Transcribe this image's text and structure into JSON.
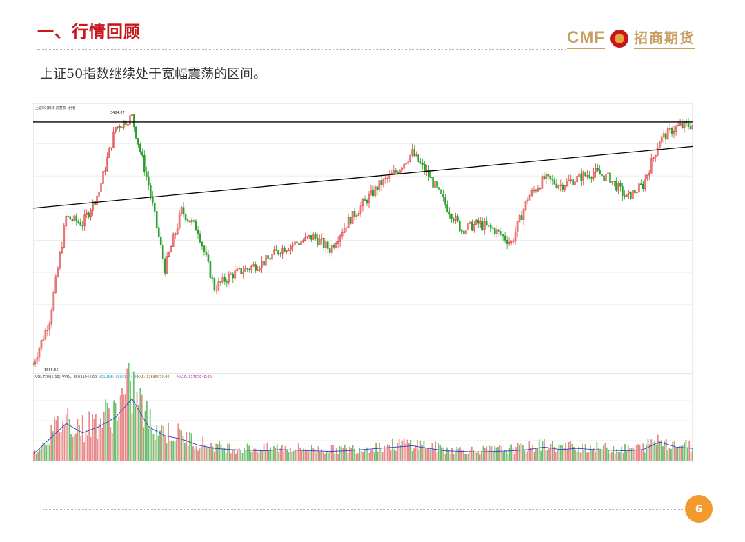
{
  "slide": {
    "title": "一、行情回顾",
    "subtitle": "上证50指数继续处于宽幅震荡的区间。",
    "page_number": "6"
  },
  "logo": {
    "latin": "CMF",
    "chinese": "招商期货",
    "colors": {
      "gold": "#c9a063",
      "red": "#c8161d"
    }
  },
  "colors": {
    "title_red": "#c8161d",
    "up_candle": "#e03c3c",
    "down_candle": "#2ca02c",
    "volume_up": "#e88a8a",
    "volume_down": "#6fbf6f",
    "ma_line": "#2a3cc8",
    "trendline": "#000000",
    "page_badge": "#f39a2e"
  },
  "chart_data": [
    {
      "type": "line",
      "title": "上证50(日线 前复权 比例)",
      "description_kind": "candlestick",
      "max_label": "3484.87",
      "min_label": "1555.65",
      "x": [
        0,
        5,
        10,
        15,
        20,
        25,
        30,
        35,
        40,
        45,
        50,
        55,
        60,
        65,
        70,
        75,
        80,
        85,
        90,
        95,
        100,
        105,
        110,
        115,
        120,
        125,
        130,
        135,
        140,
        145,
        150,
        155,
        160,
        165,
        170,
        175,
        180,
        185,
        190,
        195,
        200
      ],
      "close": [
        1560,
        1900,
        2700,
        2650,
        2900,
        3400,
        3480,
        2950,
        2300,
        2750,
        2600,
        2150,
        2250,
        2300,
        2350,
        2450,
        2500,
        2550,
        2450,
        2650,
        2800,
        2950,
        3050,
        3200,
        3020,
        2800,
        2600,
        2650,
        2600,
        2500,
        2850,
        3000,
        2950,
        3000,
        3050,
        3000,
        2850,
        2950,
        3300,
        3400,
        3420
      ],
      "trendlines": [
        {
          "kind": "horizontal",
          "value": 3440
        },
        {
          "kind": "rising",
          "start": [
            0,
            2770
          ],
          "end": [
            200,
            3250
          ]
        }
      ]
    },
    {
      "type": "bar",
      "title": "VOL-TDX(5,10)",
      "labels": {
        "vvol": "VVOL: 35031944.00",
        "volume": "VOLUME: 35031944.00",
        "ma5": "MA5: 32685970.00",
        "ma10": "MA10: 31797040.00"
      },
      "x": [
        0,
        5,
        10,
        15,
        20,
        25,
        30,
        35,
        40,
        45,
        50,
        55,
        60,
        65,
        70,
        75,
        80,
        85,
        90,
        95,
        100,
        105,
        110,
        115,
        120,
        125,
        130,
        135,
        140,
        145,
        150,
        155,
        160,
        165,
        170,
        175,
        180,
        185,
        190,
        195,
        200
      ],
      "values": [
        10,
        35,
        60,
        45,
        55,
        70,
        100,
        55,
        40,
        35,
        25,
        20,
        18,
        17,
        16,
        18,
        17,
        16,
        15,
        16,
        18,
        20,
        22,
        24,
        20,
        16,
        15,
        14,
        15,
        16,
        18,
        22,
        18,
        20,
        18,
        17,
        16,
        18,
        30,
        22,
        20
      ]
    }
  ]
}
